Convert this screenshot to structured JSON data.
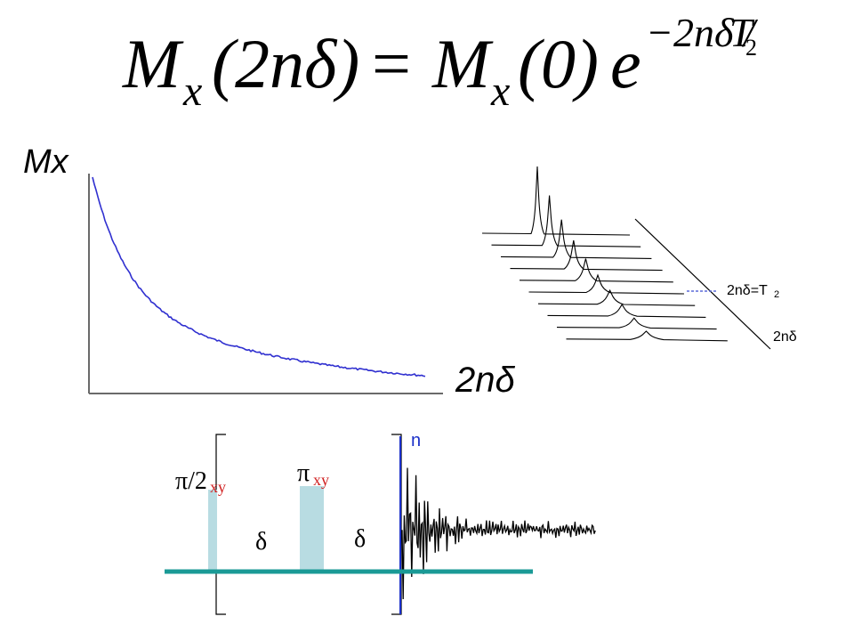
{
  "equation": {
    "lhs_M": "M",
    "lhs_sub": "x",
    "lhs_arg": "(2nδ)",
    "equals": "=",
    "rhs_M": "M",
    "rhs_sub": "x",
    "rhs_arg": "(0)",
    "rhs_e": "e",
    "exponent": "−2nδ /",
    "exponent_T": "T",
    "exponent_T_sub": "2"
  },
  "decay_plot": {
    "y_label": "Mx",
    "x_label": "2nδ",
    "curve_color": "#3030d0"
  },
  "spectra_stack": {
    "label_t2": "2nδ=T",
    "label_t2_sub": "2",
    "label_axis": "2nδ",
    "peak_count": 10
  },
  "pulse_sequence": {
    "pulse1_symbol": "π/2",
    "pulse1_sub": "xy",
    "pulse2_symbol": "π",
    "pulse2_sub": "xy",
    "delay1": "δ",
    "delay2": "δ",
    "repeat_label": "n",
    "pulse_color": "#b8dce2",
    "baseline_color": "#1a9a96",
    "subscript_color": "#d02020",
    "repeat_color": "#1a2fc8"
  }
}
